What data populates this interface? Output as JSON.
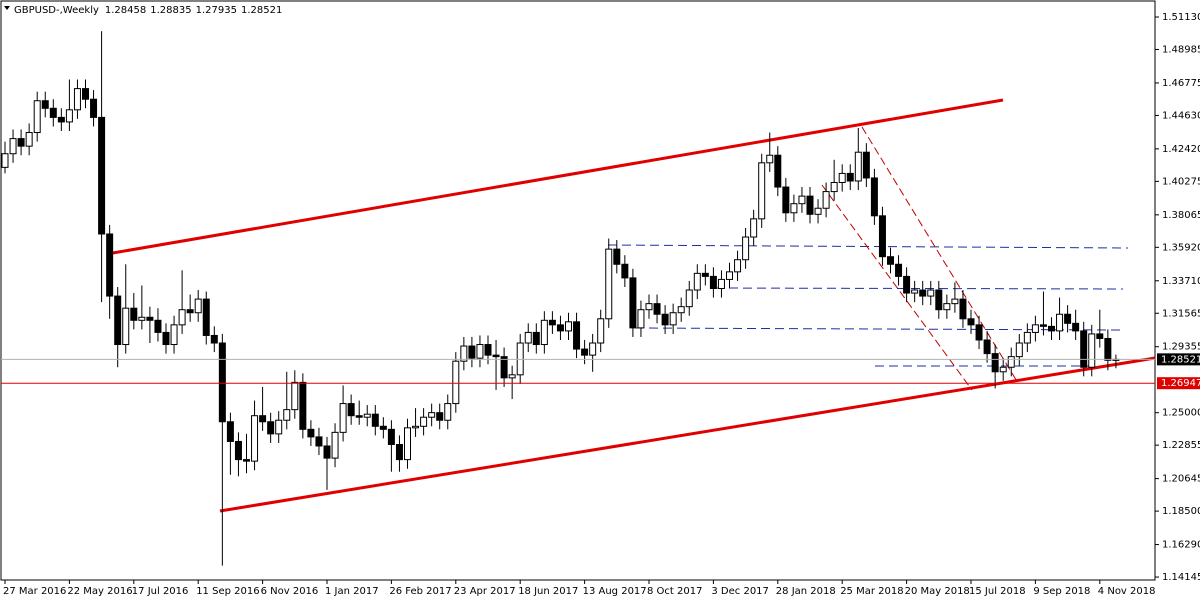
{
  "chart_data": {
    "type": "candlestick",
    "title": "GBPUSD-,Weekly",
    "categories": [
      "27 Mar 2016",
      null,
      null,
      null,
      null,
      null,
      null,
      null,
      "22 May 2016",
      null,
      null,
      null,
      null,
      null,
      null,
      null,
      "17 Jul 2016",
      null,
      null,
      null,
      null,
      null,
      null,
      null,
      "11 Sep 2016",
      null,
      null,
      null,
      null,
      null,
      null,
      null,
      "6 Nov 2016",
      null,
      null,
      null,
      null,
      null,
      null,
      null,
      "1 Jan 2017",
      null,
      null,
      null,
      null,
      null,
      null,
      null,
      "26 Feb 2017",
      null,
      null,
      null,
      null,
      null,
      null,
      null,
      "23 Apr 2017",
      null,
      null,
      null,
      null,
      null,
      null,
      null,
      "18 Jun 2017",
      null,
      null,
      null,
      null,
      null,
      null,
      null,
      "13 Aug 2017",
      null,
      null,
      null,
      null,
      null,
      null,
      null,
      "8 Oct 2017",
      null,
      null,
      null,
      null,
      null,
      null,
      null,
      "3 Dec 2017",
      null,
      null,
      null,
      null,
      null,
      null,
      null,
      "28 Jan 2018",
      null,
      null,
      null,
      null,
      null,
      null,
      null,
      "25 Mar 2018",
      null,
      null,
      null,
      null,
      null,
      null,
      null,
      "20 May 2018",
      null,
      null,
      null,
      null,
      null,
      null,
      null,
      "15 Jul 2018",
      null,
      null,
      null,
      null,
      null,
      null,
      null,
      "9 Sep 2018",
      null,
      null,
      null,
      null,
      null,
      null,
      null,
      "4 Nov 2018",
      null,
      null
    ],
    "ohlc": [
      [
        1.412,
        1.429,
        1.408,
        1.421
      ],
      [
        1.421,
        1.437,
        1.415,
        1.431
      ],
      [
        1.431,
        1.437,
        1.42,
        1.426
      ],
      [
        1.426,
        1.441,
        1.42,
        1.435
      ],
      [
        1.435,
        1.462,
        1.429,
        1.456
      ],
      [
        1.456,
        1.462,
        1.445,
        1.451
      ],
      [
        1.451,
        1.457,
        1.439,
        1.445
      ],
      [
        1.445,
        1.451,
        1.436,
        1.442
      ],
      [
        1.442,
        1.47,
        1.436,
        1.45
      ],
      [
        1.45,
        1.47,
        1.444,
        1.464
      ],
      [
        1.464,
        1.47,
        1.451,
        1.457
      ],
      [
        1.457,
        1.463,
        1.439,
        1.445
      ],
      [
        1.445,
        1.502,
        1.323,
        1.368
      ],
      [
        1.368,
        1.374,
        1.312,
        1.327
      ],
      [
        1.327,
        1.333,
        1.28,
        1.295
      ],
      [
        1.295,
        1.348,
        1.289,
        1.319
      ],
      [
        1.319,
        1.329,
        1.305,
        1.311
      ],
      [
        1.311,
        1.334,
        1.305,
        1.313
      ],
      [
        1.313,
        1.32,
        1.296,
        1.311
      ],
      [
        1.311,
        1.319,
        1.297,
        1.303
      ],
      [
        1.303,
        1.309,
        1.289,
        1.295
      ],
      [
        1.295,
        1.314,
        1.289,
        1.308
      ],
      [
        1.308,
        1.344,
        1.302,
        1.318
      ],
      [
        1.318,
        1.328,
        1.31,
        1.316
      ],
      [
        1.316,
        1.331,
        1.31,
        1.325
      ],
      [
        1.325,
        1.33,
        1.295,
        1.301
      ],
      [
        1.301,
        1.307,
        1.29,
        1.296
      ],
      [
        1.296,
        1.302,
        1.149,
        1.244
      ],
      [
        1.244,
        1.25,
        1.209,
        1.231
      ],
      [
        1.231,
        1.237,
        1.208,
        1.219
      ],
      [
        1.219,
        1.236,
        1.21,
        1.218
      ],
      [
        1.218,
        1.258,
        1.212,
        1.248
      ],
      [
        1.248,
        1.267,
        1.238,
        1.244
      ],
      [
        1.244,
        1.25,
        1.23,
        1.236
      ],
      [
        1.236,
        1.251,
        1.23,
        1.245
      ],
      [
        1.245,
        1.277,
        1.239,
        1.252
      ],
      [
        1.252,
        1.278,
        1.246,
        1.27
      ],
      [
        1.27,
        1.276,
        1.233,
        1.239
      ],
      [
        1.239,
        1.245,
        1.228,
        1.234
      ],
      [
        1.234,
        1.24,
        1.222,
        1.228
      ],
      [
        1.228,
        1.234,
        1.199,
        1.22
      ],
      [
        1.22,
        1.243,
        1.214,
        1.237
      ],
      [
        1.237,
        1.268,
        1.231,
        1.256
      ],
      [
        1.256,
        1.262,
        1.242,
        1.248
      ],
      [
        1.248,
        1.258,
        1.242,
        1.247
      ],
      [
        1.247,
        1.255,
        1.241,
        1.249
      ],
      [
        1.249,
        1.255,
        1.235,
        1.241
      ],
      [
        1.241,
        1.247,
        1.233,
        1.239
      ],
      [
        1.239,
        1.245,
        1.211,
        1.229
      ],
      [
        1.229,
        1.235,
        1.211,
        1.219
      ],
      [
        1.219,
        1.246,
        1.213,
        1.24
      ],
      [
        1.24,
        1.253,
        1.234,
        1.241
      ],
      [
        1.241,
        1.253,
        1.235,
        1.247
      ],
      [
        1.247,
        1.256,
        1.241,
        1.25
      ],
      [
        1.25,
        1.256,
        1.239,
        1.245
      ],
      [
        1.245,
        1.262,
        1.239,
        1.256
      ],
      [
        1.256,
        1.29,
        1.25,
        1.284
      ],
      [
        1.284,
        1.3,
        1.278,
        1.294
      ],
      [
        1.294,
        1.3,
        1.28,
        1.286
      ],
      [
        1.286,
        1.301,
        1.28,
        1.295
      ],
      [
        1.295,
        1.301,
        1.282,
        1.288
      ],
      [
        1.288,
        1.298,
        1.265,
        1.287
      ],
      [
        1.287,
        1.293,
        1.267,
        1.273
      ],
      [
        1.273,
        1.281,
        1.259,
        1.275
      ],
      [
        1.275,
        1.302,
        1.269,
        1.296
      ],
      [
        1.296,
        1.309,
        1.29,
        1.303
      ],
      [
        1.303,
        1.309,
        1.289,
        1.295
      ],
      [
        1.295,
        1.317,
        1.289,
        1.311
      ],
      [
        1.311,
        1.317,
        1.302,
        1.308
      ],
      [
        1.308,
        1.314,
        1.298,
        1.304
      ],
      [
        1.304,
        1.316,
        1.298,
        1.31
      ],
      [
        1.31,
        1.316,
        1.286,
        1.292
      ],
      [
        1.292,
        1.298,
        1.282,
        1.288
      ],
      [
        1.288,
        1.302,
        1.277,
        1.296
      ],
      [
        1.296,
        1.318,
        1.29,
        1.312
      ],
      [
        1.312,
        1.365,
        1.306,
        1.358
      ],
      [
        1.358,
        1.364,
        1.342,
        1.348
      ],
      [
        1.348,
        1.354,
        1.333,
        1.339
      ],
      [
        1.339,
        1.345,
        1.3,
        1.306
      ],
      [
        1.306,
        1.324,
        1.3,
        1.318
      ],
      [
        1.318,
        1.328,
        1.312,
        1.322
      ],
      [
        1.322,
        1.328,
        1.309,
        1.315
      ],
      [
        1.315,
        1.321,
        1.302,
        1.308
      ],
      [
        1.308,
        1.322,
        1.302,
        1.316
      ],
      [
        1.316,
        1.326,
        1.31,
        1.32
      ],
      [
        1.32,
        1.337,
        1.314,
        1.331
      ],
      [
        1.331,
        1.348,
        1.325,
        1.342
      ],
      [
        1.342,
        1.348,
        1.334,
        1.34
      ],
      [
        1.34,
        1.346,
        1.326,
        1.332
      ],
      [
        1.332,
        1.344,
        1.326,
        1.338
      ],
      [
        1.338,
        1.349,
        1.332,
        1.343
      ],
      [
        1.343,
        1.357,
        1.337,
        1.351
      ],
      [
        1.351,
        1.372,
        1.345,
        1.366
      ],
      [
        1.366,
        1.384,
        1.36,
        1.378
      ],
      [
        1.378,
        1.421,
        1.372,
        1.415
      ],
      [
        1.415,
        1.435,
        1.409,
        1.42
      ],
      [
        1.42,
        1.426,
        1.393,
        1.399
      ],
      [
        1.399,
        1.405,
        1.376,
        1.382
      ],
      [
        1.382,
        1.394,
        1.376,
        1.388
      ],
      [
        1.388,
        1.399,
        1.382,
        1.393
      ],
      [
        1.393,
        1.399,
        1.375,
        1.381
      ],
      [
        1.381,
        1.391,
        1.375,
        1.385
      ],
      [
        1.385,
        1.402,
        1.379,
        1.396
      ],
      [
        1.396,
        1.417,
        1.39,
        1.402
      ],
      [
        1.402,
        1.414,
        1.396,
        1.408
      ],
      [
        1.408,
        1.414,
        1.397,
        1.403
      ],
      [
        1.403,
        1.438,
        1.397,
        1.422
      ],
      [
        1.422,
        1.428,
        1.399,
        1.405
      ],
      [
        1.405,
        1.411,
        1.374,
        1.38
      ],
      [
        1.38,
        1.386,
        1.347,
        1.353
      ],
      [
        1.353,
        1.359,
        1.342,
        1.348
      ],
      [
        1.348,
        1.354,
        1.334,
        1.34
      ],
      [
        1.34,
        1.346,
        1.323,
        1.329
      ],
      [
        1.329,
        1.337,
        1.323,
        1.331
      ],
      [
        1.331,
        1.337,
        1.321,
        1.327
      ],
      [
        1.327,
        1.337,
        1.321,
        1.331
      ],
      [
        1.331,
        1.337,
        1.312,
        1.318
      ],
      [
        1.318,
        1.328,
        1.312,
        1.322
      ],
      [
        1.322,
        1.336,
        1.316,
        1.325
      ],
      [
        1.325,
        1.331,
        1.306,
        1.312
      ],
      [
        1.312,
        1.318,
        1.302,
        1.308
      ],
      [
        1.308,
        1.314,
        1.292,
        1.298
      ],
      [
        1.298,
        1.304,
        1.283,
        1.289
      ],
      [
        1.289,
        1.295,
        1.266,
        1.277
      ],
      [
        1.277,
        1.286,
        1.271,
        1.28
      ],
      [
        1.28,
        1.293,
        1.274,
        1.287
      ],
      [
        1.287,
        1.302,
        1.281,
        1.296
      ],
      [
        1.296,
        1.309,
        1.29,
        1.303
      ],
      [
        1.303,
        1.314,
        1.297,
        1.308
      ],
      [
        1.308,
        1.33,
        1.301,
        1.307
      ],
      [
        1.307,
        1.313,
        1.298,
        1.304
      ],
      [
        1.304,
        1.326,
        1.298,
        1.315
      ],
      [
        1.315,
        1.321,
        1.303,
        1.309
      ],
      [
        1.309,
        1.318,
        1.298,
        1.304
      ],
      [
        1.304,
        1.31,
        1.274,
        1.28
      ],
      [
        1.28,
        1.308,
        1.274,
        1.302
      ],
      [
        1.302,
        1.318,
        1.293,
        1.299
      ],
      [
        1.299,
        1.305,
        1.278,
        1.2846
      ],
      [
        1.28458,
        1.28835,
        1.27935,
        1.28521
      ]
    ],
    "up_color": "#ffffff",
    "down_color": "#000000",
    "ylim": [
      1.1395,
      1.5212
    ],
    "yticks": [
      {
        "value": 1.5113,
        "label": "1.51130"
      },
      1.48985,
      1.46775,
      {
        "value": 1.4463,
        "label": "1.44630"
      },
      {
        "value": 1.4242,
        "label": "1.42420"
      },
      1.40275,
      1.38065,
      {
        "value": 1.3592,
        "label": "1.35920"
      },
      {
        "value": 1.3371,
        "label": "1.33710"
      },
      1.31565,
      1.29355,
      {
        "value": 1.25,
        "label": "1.25000"
      },
      1.22855,
      1.20645,
      {
        "value": 1.185,
        "label": "1.18500"
      },
      {
        "value": 1.1629,
        "label": "1.16290"
      },
      1.14145
    ],
    "hline": {
      "value": 1.26947,
      "color": "#e00000"
    },
    "grid": false
  }
}
